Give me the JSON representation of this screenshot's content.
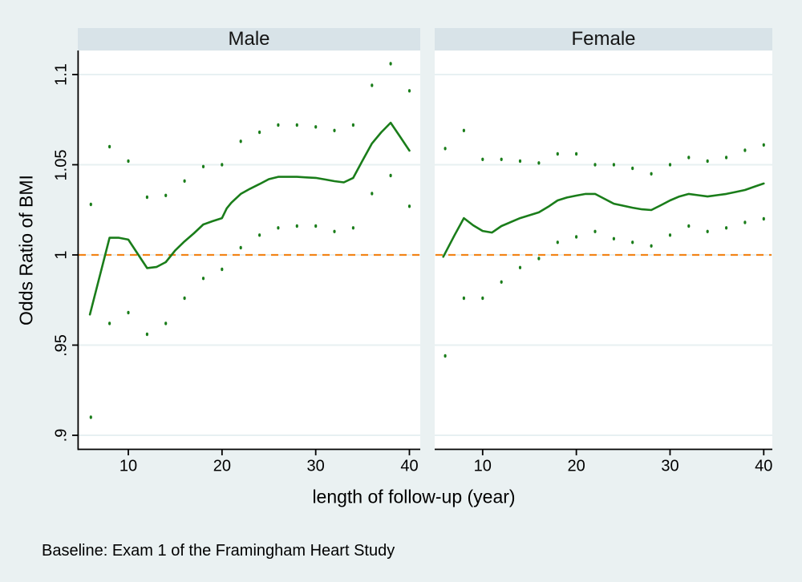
{
  "figure": {
    "background": "#eaf1f2",
    "panel_header_fill": "#d8e3e8",
    "plot_fill": "#ffffff",
    "grid_color": "#e7f0f2",
    "axis_color": "#000000",
    "line_color": "#1a7d1a",
    "reference_color": "#f28418",
    "caption": "Baseline: Exam 1 of the Framingham Heart Study"
  },
  "axes": {
    "y_title": "Odds Ratio of BMI",
    "x_title": "length of follow-up (year)",
    "y_ticks": [
      {
        "label": ".9",
        "value": 0.9
      },
      {
        "label": ".95",
        "value": 0.95
      },
      {
        "label": "1",
        "value": 1.0
      },
      {
        "label": "1.05",
        "value": 1.05
      },
      {
        "label": "1.1",
        "value": 1.1
      }
    ],
    "x_ticks": [
      {
        "label": "10",
        "value": 10
      },
      {
        "label": "20",
        "value": 20
      },
      {
        "label": "30",
        "value": 30
      },
      {
        "label": "40",
        "value": 40
      }
    ],
    "x_range": [
      4.6,
      41.2
    ],
    "y_range": [
      0.889,
      1.115
    ],
    "grid": "horizontal"
  },
  "chart_data": [
    {
      "type": "line",
      "panel": "Male",
      "reference_line": {
        "y": 1.0,
        "style": "dashed",
        "color": "#f28418"
      },
      "series": [
        {
          "name": "odds ratio",
          "style": "solid",
          "color": "#1a7d1a",
          "x": [
            5.9,
            8,
            9,
            10,
            12,
            13,
            14,
            15,
            16,
            17,
            18,
            19,
            20,
            20.5,
            21,
            22,
            23,
            24,
            25,
            26,
            28,
            29,
            30,
            31,
            32,
            33,
            34,
            35,
            36,
            37,
            38,
            39,
            40
          ],
          "y": [
            0.967,
            1.0095,
            1.0095,
            1.0085,
            0.9927,
            0.9933,
            0.996,
            1.0025,
            1.0075,
            1.012,
            1.0169,
            1.0187,
            1.0204,
            1.0258,
            1.029,
            1.0338,
            1.0367,
            1.0393,
            1.042,
            1.0433,
            1.0433,
            1.043,
            1.0427,
            1.0418,
            1.0409,
            1.0402,
            1.0427,
            1.0524,
            1.0618,
            1.068,
            1.0733,
            1.0656,
            1.0578
          ]
        },
        {
          "name": "upper 95% CI",
          "style": "dots",
          "color": "#1a7d1a",
          "x": [
            6,
            8,
            10,
            12,
            14,
            16,
            18,
            20,
            22,
            24,
            26,
            28,
            30,
            32,
            34,
            36,
            38,
            40
          ],
          "y": [
            1.028,
            1.06,
            1.052,
            1.032,
            1.033,
            1.041,
            1.049,
            1.05,
            1.063,
            1.068,
            1.072,
            1.072,
            1.071,
            1.069,
            1.072,
            1.094,
            1.106,
            1.091
          ]
        },
        {
          "name": "lower 95% CI",
          "style": "dots",
          "color": "#1a7d1a",
          "x": [
            6,
            8,
            10,
            12,
            14,
            16,
            18,
            20,
            22,
            24,
            26,
            28,
            30,
            32,
            34,
            36,
            38,
            40
          ],
          "y": [
            0.91,
            0.962,
            0.968,
            0.956,
            0.962,
            0.976,
            0.987,
            0.992,
            1.004,
            1.011,
            1.015,
            1.016,
            1.016,
            1.013,
            1.015,
            1.034,
            1.044,
            1.027
          ]
        }
      ]
    },
    {
      "type": "line",
      "panel": "Female",
      "reference_line": {
        "y": 1.0,
        "style": "dashed",
        "color": "#f28418"
      },
      "series": [
        {
          "name": "odds ratio",
          "style": "solid",
          "color": "#1a7d1a",
          "x": [
            5.8,
            7,
            8,
            9,
            10,
            11,
            12,
            14,
            16,
            17,
            18,
            19,
            20,
            21,
            22,
            23,
            24,
            26,
            27,
            28,
            29,
            30,
            31,
            32,
            33,
            34,
            35,
            36,
            37,
            38,
            39,
            40
          ],
          "y": [
            0.999,
            1.011,
            1.0204,
            1.0164,
            1.0133,
            1.0124,
            1.016,
            1.0204,
            1.0236,
            1.0267,
            1.0302,
            1.0318,
            1.0329,
            1.0338,
            1.0338,
            1.0311,
            1.0284,
            1.0262,
            1.0253,
            1.0249,
            1.0275,
            1.0302,
            1.0324,
            1.0338,
            1.0331,
            1.0324,
            1.0331,
            1.0338,
            1.0349,
            1.036,
            1.0378,
            1.0396
          ]
        },
        {
          "name": "upper 95% CI",
          "style": "dots",
          "color": "#1a7d1a",
          "x": [
            6,
            8,
            10,
            12,
            14,
            16,
            18,
            20,
            22,
            24,
            26,
            28,
            30,
            32,
            34,
            36,
            38,
            40
          ],
          "y": [
            1.059,
            1.069,
            1.053,
            1.053,
            1.052,
            1.051,
            1.056,
            1.056,
            1.05,
            1.05,
            1.048,
            1.045,
            1.05,
            1.054,
            1.052,
            1.054,
            1.058,
            1.061
          ]
        },
        {
          "name": "lower 95% CI",
          "style": "dots",
          "color": "#1a7d1a",
          "x": [
            6,
            8,
            10,
            12,
            14,
            16,
            18,
            20,
            22,
            24,
            26,
            28,
            30,
            32,
            34,
            36,
            38,
            40
          ],
          "y": [
            0.944,
            0.976,
            0.976,
            0.985,
            0.993,
            0.998,
            1.007,
            1.01,
            1.013,
            1.009,
            1.007,
            1.005,
            1.011,
            1.016,
            1.013,
            1.015,
            1.018,
            1.02
          ]
        }
      ]
    }
  ]
}
